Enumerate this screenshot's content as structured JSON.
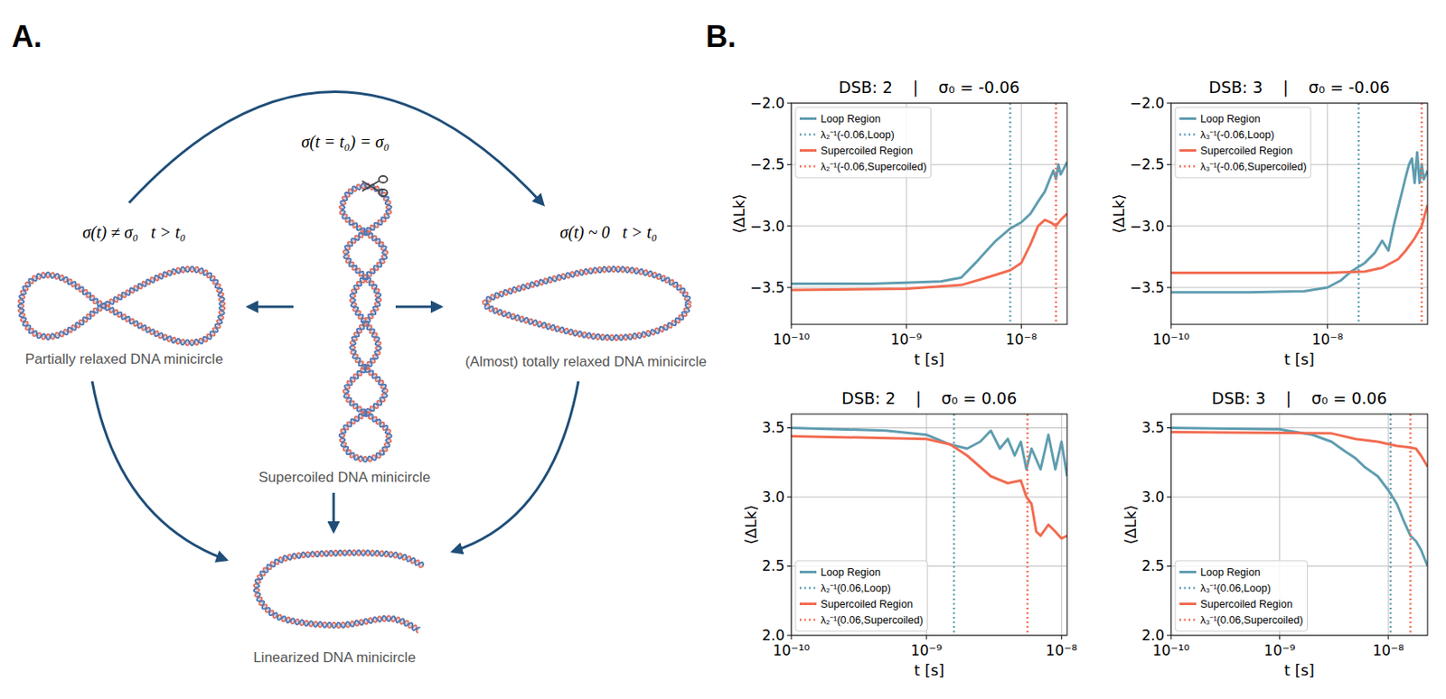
{
  "panel_a": {
    "label": "A.",
    "annotations": [
      "σ(t = t₀) = σ₀",
      "σ(t) ≠ σ₀   t > t₀",
      "σ(t) ~ 0   t > t₀"
    ],
    "nodes": [
      {
        "label": "Supercoiled DNA minicircle"
      },
      {
        "label": "Partially relaxed DNA minicircle"
      },
      {
        "label": "(Almost) totally relaxed DNA minicircle"
      },
      {
        "label": "Linearized DNA minicircle"
      }
    ]
  },
  "panel_b": {
    "label": "B."
  },
  "chart_data": [
    {
      "type": "line",
      "title": "DSB: 2    |    σ₀ = -0.06",
      "x_label": "t [s]",
      "y_label": "⟨ΔLk⟩",
      "log": "x",
      "grid": true,
      "legend": "upper left",
      "xlim": [
        1e-10,
        2.5e-08
      ],
      "ylim": [
        -3.8,
        -2.0
      ],
      "xticks": [
        {
          "value": 1e-10,
          "label": "10⁻¹⁰"
        },
        {
          "value": 1e-09,
          "label": "10⁻⁹"
        },
        {
          "value": 1e-08,
          "label": "10⁻⁸"
        }
      ],
      "yticks": [
        {
          "value": -3.5,
          "label": "−3.5"
        },
        {
          "value": -3,
          "label": "−3.0"
        },
        {
          "value": -2.5,
          "label": "−2.5"
        },
        {
          "value": -2,
          "label": "−2.0"
        }
      ],
      "series": [
        {
          "name": "Loop Region",
          "type": "line",
          "line_style": "solid",
          "color": "#5f9db0",
          "x": [
            1e-10,
            5e-10,
            1e-09,
            2e-09,
            3e-09,
            4e-09,
            5e-09,
            6e-09,
            8e-09,
            1e-08,
            1.2e-08,
            1.4e-08,
            1.6e-08,
            1.8e-08,
            1.9e-08,
            2e-08,
            2.1e-08,
            2.2e-08,
            2.5e-08
          ],
          "values": [
            -3.47,
            -3.47,
            -3.46,
            -3.45,
            -3.42,
            -3.3,
            -3.2,
            -3.12,
            -3.02,
            -2.97,
            -2.9,
            -2.8,
            -2.72,
            -2.6,
            -2.55,
            -2.62,
            -2.5,
            -2.58,
            -2.48
          ]
        },
        {
          "name": "λ₂⁻¹(-0.06,Loop)",
          "type": "vline",
          "line_style": "dotted",
          "color": "#5f9db0",
          "x": [
            8e-09
          ]
        },
        {
          "name": "Supercoiled Region",
          "type": "line",
          "line_style": "solid",
          "color": "#f26b50",
          "x": [
            1e-10,
            1e-09,
            3e-09,
            5e-09,
            8e-09,
            1e-08,
            1.2e-08,
            1.4e-08,
            1.6e-08,
            1.8e-08,
            2e-08,
            2.2e-08,
            2.5e-08
          ],
          "values": [
            -3.52,
            -3.51,
            -3.48,
            -3.42,
            -3.36,
            -3.3,
            -3.15,
            -3.0,
            -2.95,
            -2.97,
            -3.0,
            -2.95,
            -2.9
          ]
        },
        {
          "name": "λ₂⁻¹(-0.06,Supercoiled)",
          "type": "vline",
          "line_style": "dotted",
          "color": "#f26b50",
          "x": [
            2e-08
          ]
        }
      ]
    },
    {
      "type": "line",
      "title": "DSB: 3    |    σ₀ = -0.06",
      "x_label": "t [s]",
      "y_label": "⟨ΔLk⟩",
      "log": "x",
      "grid": true,
      "legend": "upper left",
      "xlim": [
        1e-10,
        1.9e-07
      ],
      "ylim": [
        -3.8,
        -2.0
      ],
      "xticks": [
        {
          "value": 1e-10,
          "label": "10⁻¹⁰"
        },
        {
          "value": 1e-08,
          "label": "10⁻⁸"
        }
      ],
      "yticks": [
        {
          "value": -3.5,
          "label": "−3.5"
        },
        {
          "value": -3,
          "label": "−3.0"
        },
        {
          "value": -2.5,
          "label": "−2.5"
        },
        {
          "value": -2,
          "label": "−2.0"
        }
      ],
      "series": [
        {
          "name": "Loop Region",
          "type": "line",
          "line_style": "solid",
          "color": "#5f9db0",
          "x": [
            1e-10,
            1e-09,
            5e-09,
            1e-08,
            1.5e-08,
            2e-08,
            3e-08,
            4e-08,
            5e-08,
            6e-08,
            7e-08,
            8e-08,
            1e-07,
            1.1e-07,
            1.2e-07,
            1.3e-07,
            1.4e-07,
            1.5e-07,
            1.6e-07,
            1.7e-07,
            1.9e-07
          ],
          "values": [
            -3.54,
            -3.54,
            -3.53,
            -3.5,
            -3.44,
            -3.37,
            -3.3,
            -3.22,
            -3.12,
            -3.2,
            -3.0,
            -2.85,
            -2.6,
            -2.5,
            -2.45,
            -2.65,
            -2.4,
            -2.65,
            -2.5,
            -2.62,
            -2.55
          ]
        },
        {
          "name": "λ₃⁻¹(-0.06,Loop)",
          "type": "vline",
          "line_style": "dotted",
          "color": "#5f9db0",
          "x": [
            2.5e-08
          ]
        },
        {
          "name": "Supercoiled Region",
          "type": "line",
          "line_style": "solid",
          "color": "#f26b50",
          "x": [
            1e-10,
            1e-09,
            1e-08,
            3e-08,
            5e-08,
            8e-08,
            1e-07,
            1.3e-07,
            1.6e-07,
            1.9e-07
          ],
          "values": [
            -3.38,
            -3.38,
            -3.38,
            -3.37,
            -3.34,
            -3.27,
            -3.2,
            -3.1,
            -3.0,
            -2.83
          ]
        },
        {
          "name": "λ₃⁻¹(-0.06,Supercoiled)",
          "type": "vline",
          "line_style": "dotted",
          "color": "#f26b50",
          "x": [
            1.6e-07
          ]
        }
      ]
    },
    {
      "type": "line",
      "title": "DSB: 2    |    σ₀ = 0.06",
      "x_label": "t [s]",
      "y_label": "⟨ΔLk⟩",
      "log": "x",
      "grid": true,
      "legend": "lower left",
      "xlim": [
        1e-10,
        1.1e-08
      ],
      "ylim": [
        2.0,
        3.6
      ],
      "xticks": [
        {
          "value": 1e-10,
          "label": "10⁻¹⁰"
        },
        {
          "value": 1e-09,
          "label": "10⁻⁹"
        },
        {
          "value": 1e-08,
          "label": "10⁻⁸"
        }
      ],
      "yticks": [
        {
          "value": 2,
          "label": "2.0"
        },
        2.5,
        {
          "value": 3,
          "label": "3.0"
        },
        3.5
      ],
      "series": [
        {
          "name": "Loop Region",
          "type": "line",
          "line_style": "solid",
          "color": "#5f9db0",
          "x": [
            1e-10,
            5e-10,
            1e-09,
            1.5e-09,
            2e-09,
            2.5e-09,
            3e-09,
            3.5e-09,
            4e-09,
            4.5e-09,
            5e-09,
            5.5e-09,
            6e-09,
            7e-09,
            8e-09,
            9e-09,
            1e-08,
            1.1e-08
          ],
          "values": [
            3.5,
            3.48,
            3.45,
            3.38,
            3.35,
            3.4,
            3.48,
            3.35,
            3.42,
            3.3,
            3.4,
            3.2,
            3.35,
            3.2,
            3.45,
            3.2,
            3.4,
            3.15
          ]
        },
        {
          "name": "λ₂⁻¹(0.06,Loop)",
          "type": "vline",
          "line_style": "dotted",
          "color": "#5f9db0",
          "x": [
            1.6e-09
          ]
        },
        {
          "name": "Supercoiled Region",
          "type": "line",
          "line_style": "solid",
          "color": "#f26b50",
          "x": [
            1e-10,
            1e-09,
            1.5e-09,
            2e-09,
            3e-09,
            4e-09,
            5e-09,
            5.5e-09,
            6e-09,
            6.5e-09,
            7e-09,
            8e-09,
            9e-09,
            1e-08,
            1.1e-08
          ],
          "values": [
            3.44,
            3.42,
            3.38,
            3.3,
            3.15,
            3.1,
            3.12,
            3.0,
            2.95,
            2.75,
            2.72,
            2.8,
            2.75,
            2.7,
            2.72
          ]
        },
        {
          "name": "λ₂⁻¹(0.06,Supercoiled)",
          "type": "vline",
          "line_style": "dotted",
          "color": "#f26b50",
          "x": [
            5.6e-09
          ]
        }
      ]
    },
    {
      "type": "line",
      "title": "DSB: 3    |    σ₀ = 0.06",
      "x_label": "t [s]",
      "y_label": "⟨ΔLk⟩",
      "log": "x",
      "grid": true,
      "legend": "lower left",
      "xlim": [
        1e-10,
        2.3e-08
      ],
      "ylim": [
        2.0,
        3.6
      ],
      "xticks": [
        {
          "value": 1e-10,
          "label": "10⁻¹⁰"
        },
        {
          "value": 1e-09,
          "label": "10⁻⁹"
        },
        {
          "value": 1e-08,
          "label": "10⁻⁸"
        }
      ],
      "yticks": [
        {
          "value": 2,
          "label": "2.0"
        },
        2.5,
        {
          "value": 3,
          "label": "3.0"
        },
        3.5
      ],
      "series": [
        {
          "name": "Loop Region",
          "type": "line",
          "line_style": "solid",
          "color": "#5f9db0",
          "x": [
            1e-10,
            1e-09,
            2e-09,
            3e-09,
            4e-09,
            5e-09,
            6e-09,
            8e-09,
            1e-08,
            1.2e-08,
            1.4e-08,
            1.6e-08,
            1.8e-08,
            2e-08,
            2.3e-08
          ],
          "values": [
            3.5,
            3.49,
            3.45,
            3.4,
            3.33,
            3.28,
            3.22,
            3.15,
            3.05,
            2.95,
            2.82,
            2.72,
            2.68,
            2.62,
            2.5
          ]
        },
        {
          "name": "λ₃⁻¹(0.06,Loop)",
          "type": "vline",
          "line_style": "dotted",
          "color": "#5f9db0",
          "x": [
            1.05e-08
          ]
        },
        {
          "name": "Supercoiled Region",
          "type": "line",
          "line_style": "solid",
          "color": "#f26b50",
          "x": [
            1e-10,
            3e-09,
            5e-09,
            8e-09,
            1.2e-08,
            1.5e-08,
            1.8e-08,
            2e-08,
            2.3e-08
          ],
          "values": [
            3.47,
            3.46,
            3.42,
            3.4,
            3.37,
            3.36,
            3.35,
            3.3,
            3.22
          ]
        },
        {
          "name": "λ₃⁻¹(0.06,Supercoiled)",
          "type": "vline",
          "line_style": "dotted",
          "color": "#f26b50",
          "x": [
            1.6e-08
          ]
        }
      ]
    }
  ]
}
